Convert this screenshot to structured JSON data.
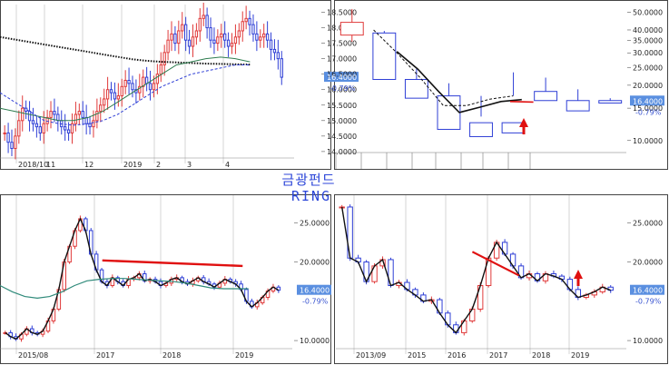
{
  "header": {
    "title_ko": "금광펀드",
    "title_en": "RING"
  },
  "colors": {
    "up": "#e03a3a",
    "down": "#2f3fd6",
    "ma_long": "#111111",
    "ma_mid": "#2e7d4f",
    "trend": "#e01010",
    "label_bg": "#5a8fe0",
    "arrow": "#e01010"
  },
  "chart_data": [
    {
      "type": "candlestick",
      "timeframe": "daily",
      "last_price": "16.4000",
      "change_pct": "-0.79%",
      "yticks": [
        "18.5000",
        "18.0000",
        "17.5000",
        "17.0000",
        "16.5000",
        "16.0000",
        "15.5000",
        "15.0000",
        "14.5000",
        "14.0000"
      ],
      "ylim": [
        13.85,
        18.75
      ],
      "xticks": [
        "2018/10",
        "11",
        "12",
        "2019",
        "2",
        "3",
        "4"
      ],
      "series": [
        {
          "name": "close",
          "values": [
            14.6,
            14.3,
            14.1,
            14.5,
            15.0,
            15.4,
            15.3,
            15.0,
            14.9,
            14.8,
            14.6,
            14.9,
            15.1,
            15.3,
            15.2,
            15.0,
            14.8,
            14.7,
            14.6,
            14.9,
            15.2,
            15.3,
            15.1,
            14.9,
            14.8,
            15.0,
            15.3,
            15.5,
            15.7,
            16.0,
            15.9,
            15.7,
            15.8,
            16.1,
            16.3,
            16.2,
            16.0,
            15.9,
            16.1,
            16.4,
            16.2,
            16.0,
            16.2,
            16.5,
            16.8,
            17.2,
            17.6,
            17.8,
            17.5,
            17.9,
            18.1,
            17.6,
            17.4,
            17.7,
            17.9,
            18.3,
            18.4,
            18.0,
            17.6,
            17.5,
            17.7,
            17.8,
            17.6,
            17.4,
            17.5,
            17.7,
            17.9,
            18.2,
            18.3,
            18.1,
            17.8,
            17.6,
            17.7,
            17.8,
            17.6,
            17.3,
            17.2,
            17.0,
            16.4
          ]
        },
        {
          "name": "ma200",
          "values": [
            17.7,
            17.62,
            17.54,
            17.46,
            17.38,
            17.3,
            17.22,
            17.14,
            17.06,
            16.98,
            16.93,
            16.9,
            16.88,
            16.86,
            16.84,
            16.83,
            16.82,
            16.81
          ]
        },
        {
          "name": "ma_mid",
          "values": [
            15.4,
            15.3,
            15.2,
            15.1,
            15.0,
            15.0,
            15.1,
            15.3,
            15.6,
            15.9,
            16.2,
            16.5,
            16.8,
            16.9,
            17.0,
            17.05,
            17.0,
            16.9
          ]
        },
        {
          "name": "band_lower",
          "values": [
            15.9,
            15.6,
            15.3,
            15.0,
            14.9,
            14.85,
            14.9,
            15.0,
            15.2,
            15.5,
            15.8,
            16.1,
            16.3,
            16.5,
            16.6,
            16.7,
            16.8,
            16.8
          ]
        }
      ]
    },
    {
      "type": "candlestick",
      "timeframe": "yearly",
      "scale": "log",
      "last_price": "16.4000",
      "change_pct": "-0.79%",
      "yticks": [
        "50.0000",
        "40.0000",
        "35.0000",
        "30.0000",
        "25.0000",
        "20.0000",
        "15.0000",
        "10.0000"
      ],
      "ylim": [
        8.6,
        55
      ],
      "candles": [
        [
          37.5,
          52,
          34.5,
          44
        ],
        [
          38.5,
          39.5,
          22.5,
          21.5
        ],
        [
          21.5,
          24.5,
          17.5,
          17
        ],
        [
          17.5,
          20.5,
          12.5,
          11.5
        ],
        [
          12.5,
          13.5,
          17.5,
          10.5
        ],
        [
          12.5,
          23.5,
          17.5,
          11
        ],
        [
          18.5,
          22,
          18.5,
          16.5
        ],
        [
          16.5,
          19,
          16.5,
          14.5
        ],
        [
          16.5,
          17,
          16,
          16
        ]
      ],
      "series": [
        {
          "name": "ma_black",
          "values": [
            30.5,
            24.5,
            18.5,
            14.2,
            15.2,
            16.3,
            16.7
          ]
        },
        {
          "name": "ma_dashed",
          "values": [
            40,
            30,
            22,
            15.5,
            15.5,
            16.8,
            17.5
          ]
        },
        {
          "name": "resistance",
          "values": [
            16.3,
            16.2
          ]
        }
      ]
    },
    {
      "type": "candlestick",
      "timeframe": "monthly",
      "last_price": "16.4000",
      "change_pct": "-0.79%",
      "yticks": [
        "25.0000",
        "20.0000",
        "10.0000"
      ],
      "ylim": [
        9.2,
        28.5
      ],
      "xticks": [
        "2015/08",
        "2017",
        "2018",
        "2019"
      ],
      "series": [
        {
          "name": "close",
          "values": [
            11,
            10.5,
            10.2,
            10.8,
            11.5,
            11,
            10.8,
            11.2,
            12.5,
            14,
            16.5,
            20,
            22,
            24,
            25.5,
            24,
            21,
            19,
            17.5,
            17,
            18,
            17.5,
            17,
            17.8,
            18,
            18.5,
            17.6,
            17.8,
            17.5,
            17,
            17.3,
            17.8,
            18,
            17.5,
            17.2,
            17.6,
            18,
            17.5,
            17.2,
            16.8,
            17.3,
            17.8,
            17.5,
            17.2,
            16.5,
            15,
            14.3,
            14.8,
            15.5,
            16.3,
            16.8,
            16.4
          ]
        },
        {
          "name": "ma_long",
          "values": [
            17,
            16.2,
            15.6,
            15.4,
            15.6,
            16.2,
            17,
            17.6,
            17.8,
            17.9,
            17.9,
            17.8,
            17.7,
            17.6,
            17.5,
            17.3,
            17,
            16.7,
            16.6,
            16.6,
            16.6
          ]
        },
        {
          "name": "trend",
          "values": [
            20.2,
            19.5
          ]
        }
      ]
    },
    {
      "type": "candlestick",
      "timeframe": "quarterly",
      "last_price": "16.4000",
      "change_pct": "-0.79%",
      "yticks": [
        "25.0000",
        "20.0000",
        "10.0000"
      ],
      "ylim": [
        9.2,
        28.5
      ],
      "xticks": [
        "2013/09",
        "2015",
        "2016",
        "2017",
        "2018",
        "2019"
      ],
      "series": [
        {
          "name": "close",
          "values": [
            27,
            20.5,
            20,
            17.5,
            19.5,
            20.3,
            17,
            17.4,
            16.5,
            15.8,
            15,
            15.2,
            13.5,
            12,
            11,
            12.5,
            14,
            17,
            20.5,
            22.5,
            21,
            19.5,
            18,
            18.5,
            17.6,
            18.5,
            18.2,
            17.8,
            16.5,
            15.5,
            15.8,
            16.2,
            16.8,
            16.4
          ]
        },
        {
          "name": "trend",
          "values": [
            21.3,
            18.3
          ]
        }
      ]
    }
  ]
}
